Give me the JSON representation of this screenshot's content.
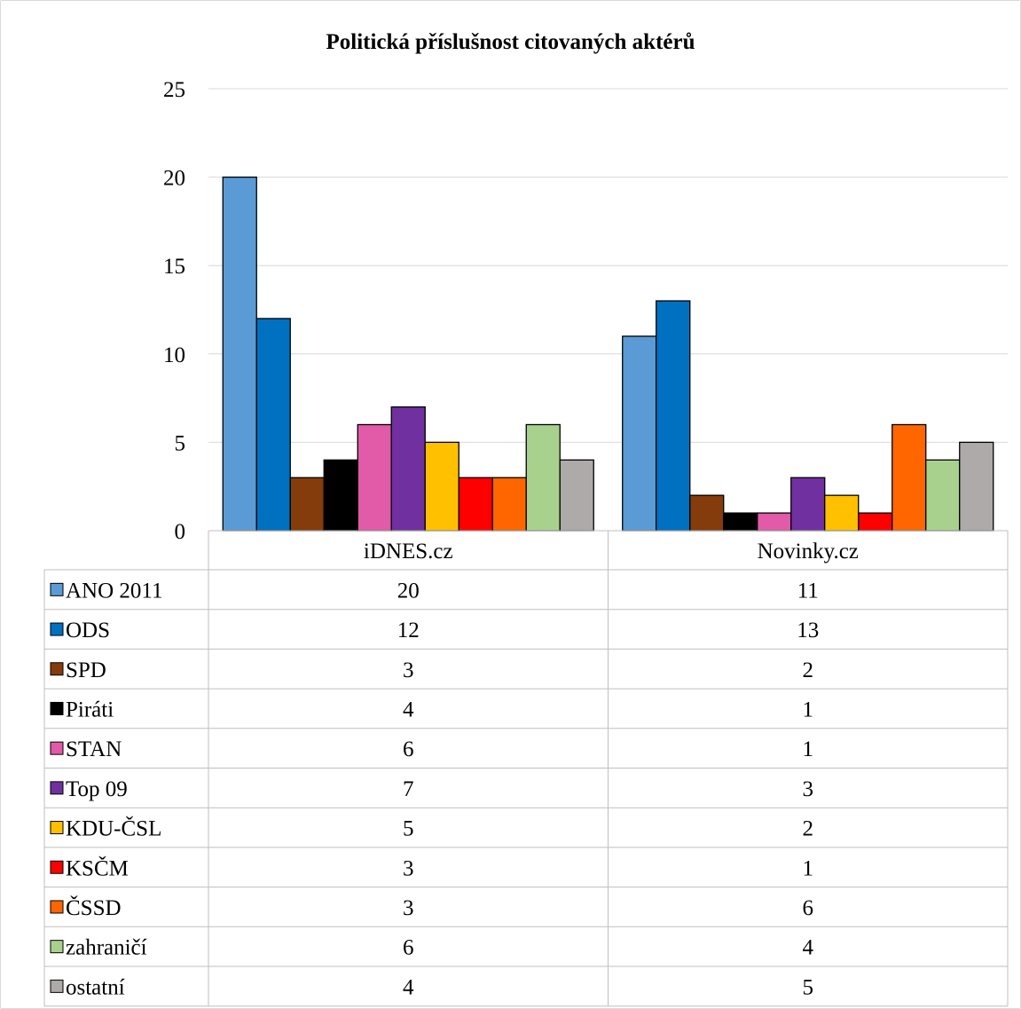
{
  "chart_data": {
    "type": "bar",
    "title": "Politická příslušnost citovaných aktérů",
    "categories": [
      "iDNES.cz",
      "Novinky.cz"
    ],
    "ylim": [
      0,
      25
    ],
    "yticks": [
      0,
      5,
      10,
      15,
      20,
      25
    ],
    "grid": true,
    "legend_placement": "data table below chart",
    "series": [
      {
        "name": "ANO 2011",
        "color": "#5b9bd5",
        "values": [
          20,
          11
        ]
      },
      {
        "name": "ODS",
        "color": "#0070c0",
        "values": [
          12,
          13
        ]
      },
      {
        "name": "SPD",
        "color": "#843c0c",
        "values": [
          3,
          2
        ]
      },
      {
        "name": "Piráti",
        "color": "#000000",
        "values": [
          4,
          1
        ]
      },
      {
        "name": "STAN",
        "color": "#e15ba9",
        "values": [
          6,
          1
        ]
      },
      {
        "name": "Top 09",
        "color": "#7030a0",
        "values": [
          7,
          3
        ]
      },
      {
        "name": "KDU-ČSL",
        "color": "#ffc000",
        "values": [
          5,
          2
        ]
      },
      {
        "name": "KSČM",
        "color": "#ff0000",
        "values": [
          3,
          1
        ]
      },
      {
        "name": "ČSSD",
        "color": "#ff6600",
        "values": [
          3,
          6
        ]
      },
      {
        "name": "zahraničí",
        "color": "#a9d18e",
        "values": [
          6,
          4
        ]
      },
      {
        "name": "ostatní",
        "color": "#aeaaaa",
        "values": [
          4,
          5
        ]
      }
    ]
  }
}
